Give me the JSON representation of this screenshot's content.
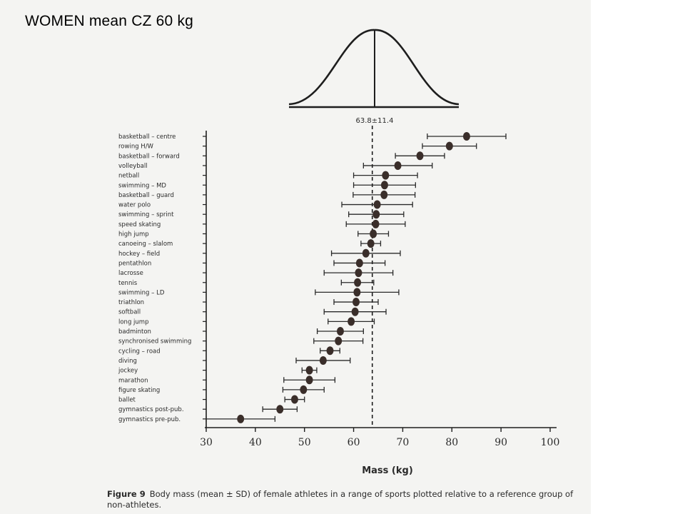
{
  "page": {
    "title": "WOMEN mean CZ 60 kg",
    "caption_figure": "Figure 9",
    "caption_text": "Body mass (mean ± SD) of female athletes in a range of sports plotted relative to a reference group of non-athletes."
  },
  "chart_data": {
    "type": "scatter",
    "title": "",
    "xlabel": "Mass (kg)",
    "ylabel": "",
    "xlim": [
      30,
      100
    ],
    "xticks": [
      30,
      40,
      50,
      60,
      70,
      80,
      90,
      100
    ],
    "reference": {
      "label": "63.8±11.4",
      "mean": 63.8,
      "sd": 11.4
    },
    "categories": [
      "basketball – centre",
      "rowing H/W",
      "basketball – forward",
      "volleyball",
      "netball",
      "swimming – MD",
      "basketball – guard",
      "water polo",
      "swimming – sprint",
      "speed skating",
      "high jump",
      "canoeing – slalom",
      "hockey – field",
      "pentathlon",
      "lacrosse",
      "tennis",
      "swimming – LD",
      "triathlon",
      "softball",
      "long jump",
      "badminton",
      "synchronised swimming",
      "cycling – road",
      "diving",
      "jockey",
      "marathon",
      "figure skating",
      "ballet",
      "gymnastics post-pub.",
      "gymnastics pre-pub."
    ],
    "series": [
      {
        "mean": [
          83,
          79.5,
          73.5,
          69,
          66.5,
          66.3,
          66.2,
          64.8,
          64.6,
          64.5,
          64,
          63.5,
          62.5,
          61.2,
          61,
          60.8,
          60.7,
          60.5,
          60.3,
          59.5,
          57.3,
          56.9,
          55.2,
          53.8,
          51,
          51,
          49.8,
          48,
          45,
          37
        ],
        "sd": [
          8,
          5.5,
          5,
          7,
          6.5,
          6.3,
          6.3,
          7.2,
          5.6,
          6,
          3.1,
          2,
          7,
          5.2,
          7,
          3.3,
          8.5,
          4.5,
          6.3,
          4.7,
          4.7,
          5,
          2,
          5.5,
          1.5,
          5.2,
          4.2,
          2,
          3.5,
          7
        ]
      }
    ]
  }
}
